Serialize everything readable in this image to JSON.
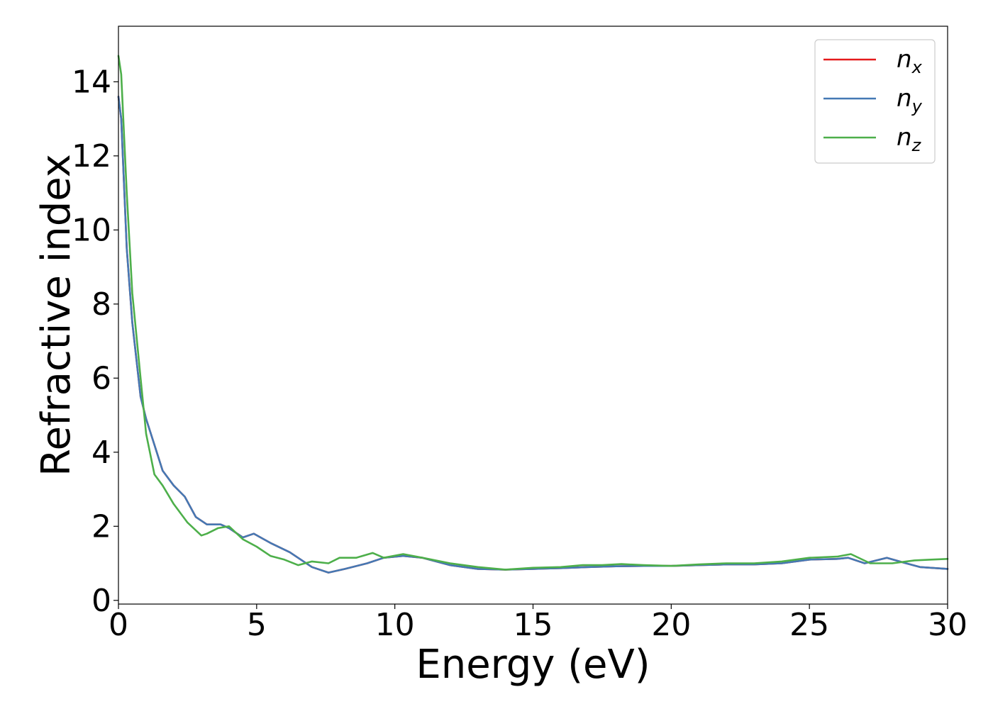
{
  "chart_data": {
    "type": "line",
    "title": "",
    "xlabel": "Energy (eV)",
    "ylabel": "Refractive index",
    "xlim": [
      0,
      30
    ],
    "ylim": [
      -0.1,
      15.5
    ],
    "xticks": [
      0,
      5,
      10,
      15,
      20,
      25,
      30
    ],
    "yticks": [
      0,
      2,
      4,
      6,
      8,
      10,
      12,
      14
    ],
    "grid": false,
    "legend_position": "top-right",
    "series": [
      {
        "name": "n_x",
        "legend_base": "n",
        "legend_sub": "x",
        "color": "#e41a1c",
        "x": [
          0,
          0.1,
          0.3,
          0.5,
          0.8,
          1.0,
          1.3,
          1.6,
          2.0,
          2.4,
          2.8,
          3.2,
          3.7,
          4.0,
          4.5,
          4.9,
          5.5,
          6.2,
          7.0,
          7.6,
          8.2,
          9.0,
          9.6,
          10.3,
          11.0,
          12.0,
          13.0,
          14.0,
          15.0,
          16.0,
          17.0,
          18.0,
          19.0,
          20.0,
          21.0,
          22.0,
          23.0,
          24.0,
          25.0,
          26.0,
          26.4,
          27.0,
          27.8,
          28.5,
          29.0,
          30.0
        ],
        "y": [
          13.6,
          13.0,
          9.5,
          7.5,
          5.5,
          4.9,
          4.2,
          3.5,
          3.1,
          2.8,
          2.25,
          2.05,
          2.05,
          1.95,
          1.7,
          1.8,
          1.55,
          1.3,
          0.9,
          0.75,
          0.85,
          1.0,
          1.15,
          1.2,
          1.15,
          0.95,
          0.85,
          0.83,
          0.85,
          0.87,
          0.9,
          0.92,
          0.93,
          0.93,
          0.95,
          0.97,
          0.97,
          1.0,
          1.1,
          1.12,
          1.15,
          1.0,
          1.15,
          1.0,
          0.9,
          0.85
        ]
      },
      {
        "name": "n_y",
        "legend_base": "n",
        "legend_sub": "y",
        "color": "#4479b4",
        "x": [
          0,
          0.1,
          0.3,
          0.5,
          0.8,
          1.0,
          1.3,
          1.6,
          2.0,
          2.4,
          2.8,
          3.2,
          3.7,
          4.0,
          4.5,
          4.9,
          5.5,
          6.2,
          7.0,
          7.6,
          8.2,
          9.0,
          9.6,
          10.3,
          11.0,
          12.0,
          13.0,
          14.0,
          15.0,
          16.0,
          17.0,
          18.0,
          19.0,
          20.0,
          21.0,
          22.0,
          23.0,
          24.0,
          25.0,
          26.0,
          26.4,
          27.0,
          27.8,
          28.5,
          29.0,
          30.0
        ],
        "y": [
          13.6,
          13.0,
          9.5,
          7.5,
          5.5,
          4.9,
          4.2,
          3.5,
          3.1,
          2.8,
          2.25,
          2.05,
          2.05,
          1.95,
          1.7,
          1.8,
          1.55,
          1.3,
          0.9,
          0.75,
          0.85,
          1.0,
          1.15,
          1.2,
          1.15,
          0.95,
          0.85,
          0.83,
          0.85,
          0.87,
          0.9,
          0.92,
          0.93,
          0.93,
          0.95,
          0.97,
          0.97,
          1.0,
          1.1,
          1.12,
          1.15,
          1.0,
          1.15,
          1.0,
          0.9,
          0.85
        ]
      },
      {
        "name": "n_z",
        "legend_base": "n",
        "legend_sub": "z",
        "color": "#4daf4a",
        "x": [
          0,
          0.1,
          0.3,
          0.5,
          0.8,
          1.0,
          1.3,
          1.6,
          2.0,
          2.5,
          3.0,
          3.2,
          3.6,
          4.0,
          4.5,
          5.0,
          5.5,
          6.0,
          6.5,
          7.0,
          7.6,
          8.0,
          8.6,
          9.2,
          9.6,
          10.3,
          11.0,
          12.0,
          13.0,
          14.0,
          15.0,
          16.0,
          16.8,
          17.5,
          18.2,
          19.0,
          20.0,
          21.0,
          22.0,
          23.0,
          24.0,
          25.0,
          26.0,
          26.5,
          27.2,
          28.0,
          28.8,
          29.4,
          30.0
        ],
        "y": [
          14.7,
          14.2,
          11.0,
          8.3,
          6.0,
          4.5,
          3.4,
          3.1,
          2.6,
          2.1,
          1.75,
          1.8,
          1.95,
          2.0,
          1.65,
          1.45,
          1.2,
          1.1,
          0.95,
          1.05,
          1.0,
          1.15,
          1.15,
          1.28,
          1.15,
          1.25,
          1.15,
          1.0,
          0.9,
          0.83,
          0.88,
          0.9,
          0.95,
          0.95,
          0.98,
          0.95,
          0.93,
          0.97,
          1.0,
          1.0,
          1.05,
          1.15,
          1.18,
          1.25,
          1.0,
          1.0,
          1.08,
          1.1,
          1.12
        ]
      }
    ]
  }
}
